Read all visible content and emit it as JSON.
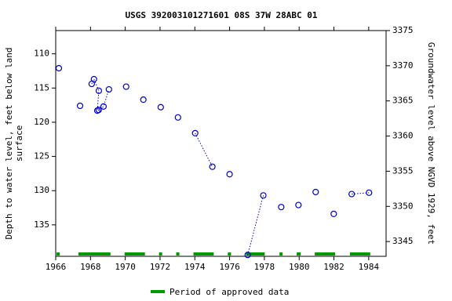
{
  "chart_data": {
    "type": "line",
    "title": "USGS 392003101271601 08S 37W 28ABC 01",
    "ylabel": [
      "Depth to water level, feet below land",
      "surface"
    ],
    "y2label": "Groundwater level above NGVD 1929, feet",
    "xlim": [
      1966,
      1985
    ],
    "xticks": [
      1966,
      1968,
      1970,
      1972,
      1974,
      1976,
      1978,
      1980,
      1982,
      1984
    ],
    "ylim": [
      106.6,
      139.6
    ],
    "yticks": [
      110,
      115,
      120,
      125,
      130,
      135
    ],
    "y_inverted": true,
    "y2lim": [
      3342.9,
      3375
    ],
    "y2ticks": [
      3345,
      3350,
      3355,
      3360,
      3365,
      3370,
      3375
    ],
    "series": [
      {
        "color": "#0000cc",
        "x": [
          1966.18,
          null,
          1967.4,
          null,
          1968.07,
          1968.2,
          1968.48,
          1968.39,
          1968.47,
          1968.75,
          1969.06,
          null,
          1970.05,
          null,
          1971.04,
          null,
          1972.04,
          null,
          1973.03,
          null,
          1974.02,
          1975.01,
          null,
          1976.0,
          null,
          1977.04,
          1977.94,
          null,
          1978.97,
          null,
          1979.96,
          null,
          1980.95,
          null,
          1981.99,
          null,
          1983.02,
          1984.02
        ],
        "values": [
          112.1,
          null,
          117.6,
          null,
          114.4,
          113.7,
          115.4,
          118.3,
          118.2,
          117.7,
          115.2,
          null,
          114.8,
          null,
          116.7,
          null,
          117.8,
          null,
          119.3,
          null,
          121.6,
          126.5,
          null,
          127.6,
          null,
          139.4,
          130.7,
          null,
          132.4,
          null,
          132.1,
          null,
          130.2,
          null,
          133.4,
          null,
          130.5,
          130.3
        ]
      }
    ],
    "approved_periods": {
      "name": "Period of approved data",
      "color": "#009900",
      "ranges": [
        [
          1966.05,
          1966.23
        ],
        [
          1967.31,
          1969.15
        ],
        [
          1969.96,
          1971.13
        ],
        [
          1971.94,
          1972.12
        ],
        [
          1972.93,
          1973.11
        ],
        [
          1973.92,
          1975.09
        ],
        [
          1975.9,
          1976.08
        ],
        [
          1976.94,
          1978.02
        ],
        [
          1978.87,
          1979.05
        ],
        [
          1979.86,
          1980.09
        ],
        [
          1980.9,
          1982.07
        ],
        [
          1982.92,
          1984.09
        ]
      ]
    }
  }
}
